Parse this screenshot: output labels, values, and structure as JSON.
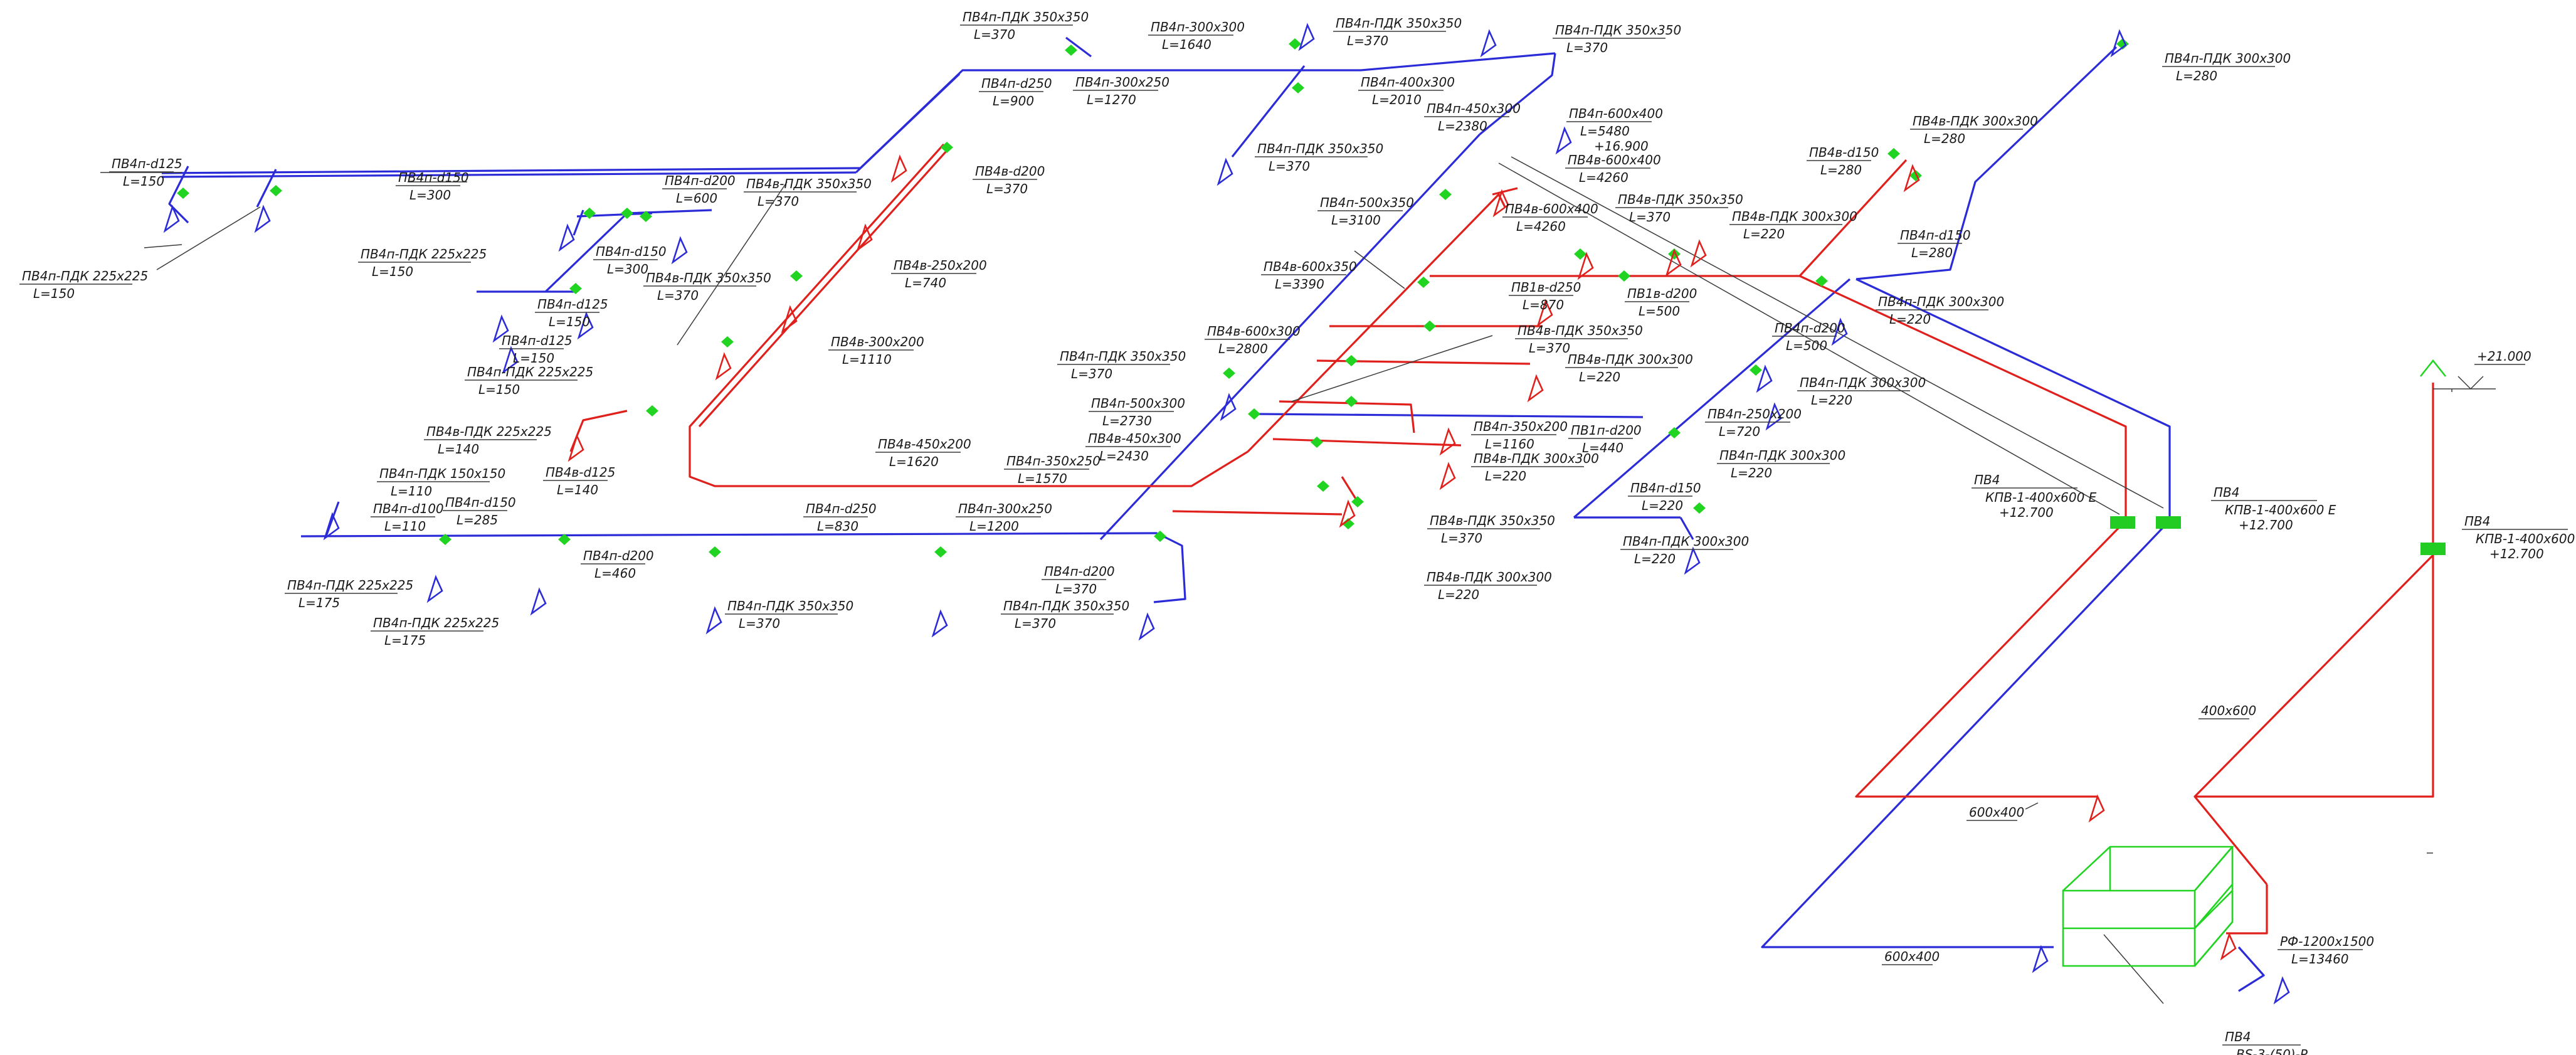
{
  "colors": {
    "supply": "#2b2bd8",
    "exhaust": "#e0201c",
    "equipment": "#22d422",
    "leader": "#3a3a3a",
    "text": "#1a1a1a"
  },
  "labels": [
    {
      "text": "ПВ4п-d125",
      "sub": "L=150"
    },
    {
      "text": "ПВ4п-ПДК 225x225",
      "sub": "L=150"
    },
    {
      "text": "ПВ4п-d150",
      "sub": "L=300"
    },
    {
      "text": "ПВ4п-d200",
      "sub": "L=600"
    },
    {
      "text": "ПВ4п-ПДК 225x225",
      "sub": "L=150"
    },
    {
      "text": "ПВ4п-d150",
      "sub": "L=300"
    },
    {
      "text": "ПВ4п-d125",
      "sub": "L=150"
    },
    {
      "text": "ПВ4п-d125",
      "sub": "L=150"
    },
    {
      "text": "ПВ4п-ПДК 225x225",
      "sub": "L=150"
    },
    {
      "text": "ПВ4п-ПДК 350x350",
      "sub": "L=370"
    },
    {
      "text": "ПВ4п-d250",
      "sub": "L=900"
    },
    {
      "text": "ПВ4п-300x300",
      "sub": "L=1640"
    },
    {
      "text": "ПВ4п-300x250",
      "sub": "L=1270"
    },
    {
      "text": "ПВ4п-ПДК 350x350",
      "sub": "L=370"
    },
    {
      "text": "ПВ4п-ПДК 350x350",
      "sub": "L=370"
    },
    {
      "text": "ПВ4п-400x300",
      "sub": "L=2010"
    },
    {
      "text": "ПВ4п-450x300",
      "sub": "L=2380"
    },
    {
      "text": "ПВ4п-ПДК 350x350",
      "sub": "L=370"
    },
    {
      "text": "ПВ4в-ПДК 350x350",
      "sub": "L=370"
    },
    {
      "text": "ПВ4в-d200",
      "sub": "L=370"
    },
    {
      "text": "ПВ4в-250x200",
      "sub": "L=740"
    },
    {
      "text": "ПВ4в-ПДК 350x350",
      "sub": "L=370"
    },
    {
      "text": "ПВ4в-300x200",
      "sub": "L=1110"
    },
    {
      "text": "ПВ4в-ПДК 225x225",
      "sub": "L=140"
    },
    {
      "text": "ПВ4в-d125",
      "sub": "L=140"
    },
    {
      "text": "ПВ4в-450x200",
      "sub": "L=1620"
    },
    {
      "text": "ПВ4п-350x250",
      "sub": "L=1570"
    },
    {
      "text": "ПВ4п-ПДК 150x150",
      "sub": "L=110"
    },
    {
      "text": "ПВ4п-d100",
      "sub": "L=110"
    },
    {
      "text": "ПВ4п-d150",
      "sub": "L=285"
    },
    {
      "text": "ПВ4п-ПДК 225x225",
      "sub": "L=175"
    },
    {
      "text": "ПВ4п-ПДК 225x225",
      "sub": "L=175"
    },
    {
      "text": "ПВ4п-d200",
      "sub": "L=460"
    },
    {
      "text": "ПВ4п-ПДК 350x350",
      "sub": "L=370"
    },
    {
      "text": "ПВ4п-d250",
      "sub": "L=830"
    },
    {
      "text": "ПВ4п-300x250",
      "sub": "L=1200"
    },
    {
      "text": "ПВ4п-d200",
      "sub": "L=370"
    },
    {
      "text": "ПВ4п-ПДК 350x350",
      "sub": "L=370"
    },
    {
      "text": "ПВ4п-ПДК 350x350",
      "sub": "L=370"
    },
    {
      "text": "ПВ4в-600x300",
      "sub": "L=2800"
    },
    {
      "text": "ПВ4п-500x300",
      "sub": "L=2730"
    },
    {
      "text": "ПВ4в-450x300",
      "sub": "L=2430"
    },
    {
      "text": "ПВ4в-600x350",
      "sub": "L=3390"
    },
    {
      "text": "ПВ4п-500x350",
      "sub": "L=3100"
    },
    {
      "text": "ПВ4п-600x400",
      "sub": "L=5480",
      "sub2": "+16.900"
    },
    {
      "text": "ПВ4в-600x400",
      "sub": "L=4260"
    },
    {
      "text": "ПВ4в-600x400",
      "sub": "L=4260"
    },
    {
      "text": "ПВ4в-ПДК 350x350",
      "sub": "L=370"
    },
    {
      "text": "ПВ4в-ПДК 300x300",
      "sub": "L=220"
    },
    {
      "text": "ПВ1в-d250",
      "sub": "L=870"
    },
    {
      "text": "ПВ1в-d200",
      "sub": "L=500"
    },
    {
      "text": "ПВ4в-ПДК 350x350",
      "sub": "L=370"
    },
    {
      "text": "ПВ4в-ПДК 300x300",
      "sub": "L=220"
    },
    {
      "text": "ПВ4п-350x200",
      "sub": "L=1160"
    },
    {
      "text": "ПВ4в-ПДК 300x300",
      "sub": "L=220"
    },
    {
      "text": "ПВ1п-d200",
      "sub": "L=440"
    },
    {
      "text": "ПВ4п-d150",
      "sub": "L=220"
    },
    {
      "text": "ПВ4п-ПДК 300x300",
      "sub": "L=220"
    },
    {
      "text": "ПВ4в-ПДК 350x350",
      "sub": "L=370"
    },
    {
      "text": "ПВ4в-ПДК 300x300",
      "sub": "L=220"
    },
    {
      "text": "ПВ4п-250x200",
      "sub": "L=720"
    },
    {
      "text": "ПВ4п-ПДК 300x300",
      "sub": "L=220"
    },
    {
      "text": "ПВ4п-d200",
      "sub": "L=500"
    },
    {
      "text": "ПВ4п-ПДК 300x300",
      "sub": "L=220"
    },
    {
      "text": "ПВ4п-d150",
      "sub": "L=280"
    },
    {
      "text": "ПВ4п-ПДК 300x300",
      "sub": "L=220"
    },
    {
      "text": "ПВ4в-d150",
      "sub": "L=280"
    },
    {
      "text": "ПВ4в-ПДК 300x300",
      "sub": "L=280"
    },
    {
      "text": "ПВ4п-ПДК 300x300",
      "sub": "L=280"
    },
    {
      "text": "ПВ4",
      "sub": "КПВ-1-400x600 Е",
      "sub2": "+12.700"
    },
    {
      "text": "ПВ4",
      "sub": "КПВ-1-400x600 Е",
      "sub2": "+12.700"
    },
    {
      "text": "ПВ4",
      "sub": "КПВ-1-400x600 Е",
      "sub2": "+12.700"
    },
    {
      "text": "+21.000"
    },
    {
      "text": "400x600"
    },
    {
      "text": "600x400"
    },
    {
      "text": "600x400"
    },
    {
      "text": "РФ-1200x1500",
      "sub": "L=13460"
    },
    {
      "text": "ПВ4",
      "sub": "BS-3-(50)-Р"
    }
  ]
}
